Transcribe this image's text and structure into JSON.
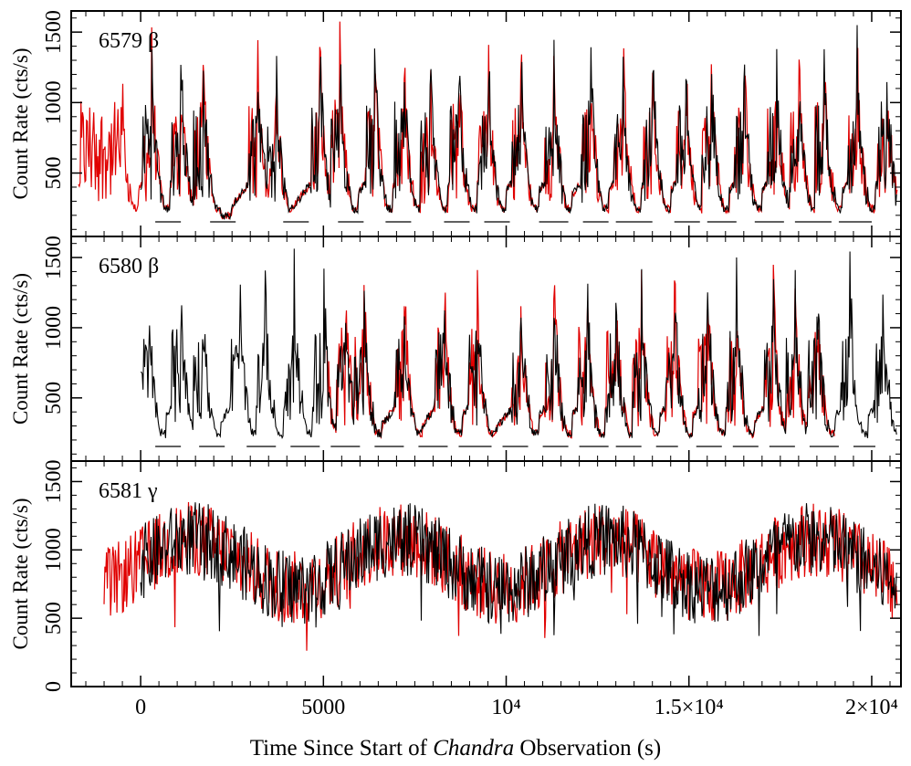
{
  "chart_data": {
    "type": "line",
    "xlabel_prefix": "Time Since Start of ",
    "xlabel_italic": "Chandra",
    "xlabel_suffix": " Observation (s)",
    "x_range": [
      -1900,
      20800
    ],
    "x_ticks": [
      {
        "value": 0,
        "label": "0"
      },
      {
        "value": 5000,
        "label": "5000"
      },
      {
        "value": 10000,
        "label": "10⁴"
      },
      {
        "value": 15000,
        "label": "1.5×10⁴"
      },
      {
        "value": 20000,
        "label": "2×10⁴"
      }
    ],
    "colors": {
      "chandra": "#000000",
      "other": "#e00000"
    },
    "panels": [
      {
        "label": "6579 β",
        "ylabel": "Count Rate (cts/s)",
        "ylim": [
          50,
          1650
        ],
        "y_ticks": [
          500,
          1000,
          1500
        ],
        "pattern": "beta",
        "black_range": [
          0,
          20700
        ],
        "red_range": [
          -1700,
          20700
        ],
        "flare_times": [
          -1400,
          -1150,
          -950,
          -750,
          -550,
          300,
          1100,
          1700,
          3200,
          3700,
          4900,
          5450,
          6400,
          7200,
          7900,
          8700,
          9500,
          10400,
          11300,
          12300,
          13200,
          14000,
          14900,
          15600,
          16500,
          17400,
          18000,
          18700,
          19600,
          20400
        ],
        "segments": [
          [
            400,
            1100
          ],
          [
            1900,
            2600
          ],
          [
            3900,
            4600
          ],
          [
            5400,
            6100
          ],
          [
            6700,
            7400
          ],
          [
            8300,
            9000
          ],
          [
            9400,
            10100
          ],
          [
            10900,
            11700
          ],
          [
            12100,
            12800
          ],
          [
            13000,
            14000
          ],
          [
            14600,
            15300
          ],
          [
            15500,
            16300
          ],
          [
            16800,
            17600
          ],
          [
            17900,
            18900
          ],
          [
            19100,
            20000
          ]
        ]
      },
      {
        "label": "6580 β",
        "ylabel": "Count Rate (cts/s)",
        "ylim": [
          50,
          1650
        ],
        "y_ticks": [
          500,
          1000,
          1500
        ],
        "pattern": "beta",
        "black_range": [
          0,
          20700
        ],
        "red_range": [
          5100,
          19000
        ],
        "flare_times": [
          200,
          1100,
          1700,
          2700,
          3400,
          4200,
          5000,
          5600,
          6100,
          7200,
          8300,
          9200,
          10400,
          11300,
          12200,
          13000,
          13700,
          14600,
          15500,
          16300,
          17300,
          17900,
          18500,
          19400,
          20300
        ],
        "segments": [
          [
            400,
            1100
          ],
          [
            1600,
            2300
          ],
          [
            2900,
            3700
          ],
          [
            4100,
            4900
          ],
          [
            5200,
            6000
          ],
          [
            6400,
            7200
          ],
          [
            7600,
            8400
          ],
          [
            8700,
            9600
          ],
          [
            9900,
            10600
          ],
          [
            11000,
            11700
          ],
          [
            12000,
            12800
          ],
          [
            13000,
            13700
          ],
          [
            14100,
            14700
          ],
          [
            15200,
            15900
          ],
          [
            16200,
            16900
          ],
          [
            17200,
            17900
          ],
          [
            18300,
            19100
          ],
          [
            19500,
            20100
          ]
        ]
      },
      {
        "label": "6581 γ",
        "ylabel": "Count Rate (cts/s)",
        "ylim": [
          0,
          1650
        ],
        "y_ticks": [
          0,
          500,
          1000,
          1500
        ],
        "pattern": "gamma",
        "black_range": [
          0,
          20700
        ],
        "red_range": [
          -1000,
          20700
        ],
        "flare_times": [],
        "segments": []
      }
    ]
  }
}
